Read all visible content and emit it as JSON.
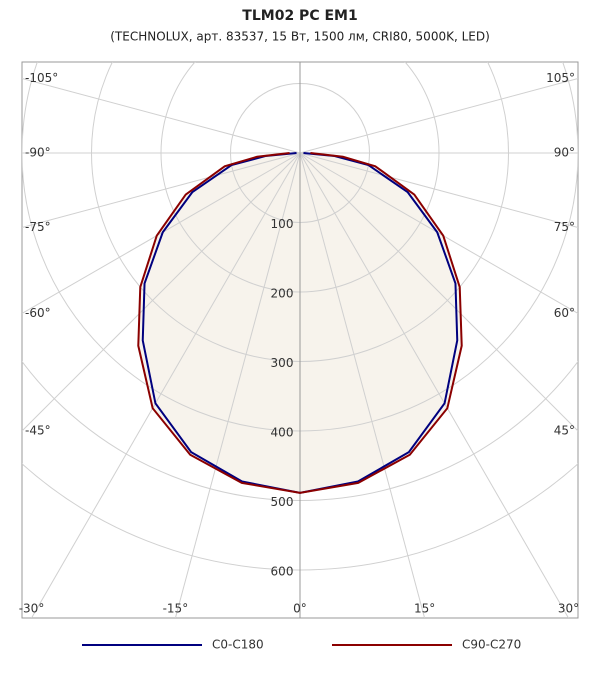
{
  "chart_data": {
    "type": "polar",
    "title": "TLM02 PC EM1",
    "subtitle": "(TECHNOLUX, арт. 83537, 15 Вт, 1500 лм, CRI80, 5000K, LED)",
    "x": [
      -90,
      -85,
      -80,
      -70,
      -60,
      -50,
      -40,
      -30,
      -20,
      -10,
      0,
      10,
      20,
      30,
      40,
      50,
      60,
      70,
      80,
      85,
      90
    ],
    "series": [
      {
        "name": "C0-C180",
        "color": "#00007f",
        "values": [
          5,
          50,
          100,
          165,
          228,
          292,
          352,
          416,
          458,
          480,
          489,
          480,
          458,
          416,
          352,
          292,
          228,
          165,
          100,
          50,
          5
        ]
      },
      {
        "name": "C90-C270",
        "color": "#8b0000",
        "values": [
          15,
          62,
          110,
          175,
          238,
          300,
          362,
          424,
          462,
          482,
          489,
          482,
          462,
          424,
          362,
          300,
          238,
          175,
          110,
          62,
          15
        ]
      }
    ],
    "rlim": [
      0,
      800
    ],
    "rticks": [
      100,
      200,
      300,
      400,
      500,
      600
    ],
    "angleticks": [
      {
        "value": -105,
        "label": "-105°"
      },
      {
        "value": -90,
        "label": "-90°"
      },
      {
        "value": -75,
        "label": "-75°"
      },
      {
        "value": -60,
        "label": "-60°"
      },
      {
        "value": -45,
        "label": "-45°"
      },
      {
        "value": -30,
        "label": "-30°"
      },
      {
        "value": -15,
        "label": "-15°"
      },
      {
        "value": 0,
        "label": "0°"
      },
      {
        "value": 15,
        "label": "15°"
      },
      {
        "value": 30,
        "label": "30°"
      },
      {
        "value": 45,
        "label": "45°"
      },
      {
        "value": 60,
        "label": "60°"
      },
      {
        "value": 75,
        "label": "75°"
      },
      {
        "value": 90,
        "label": "90°"
      },
      {
        "value": 105,
        "label": "105°"
      }
    ],
    "fill_color": "#f7f3ec",
    "grid": true
  }
}
